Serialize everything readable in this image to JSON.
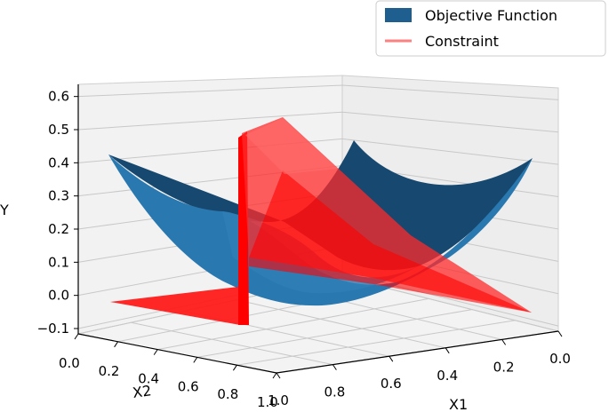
{
  "chart_data": {
    "type": "surface3d",
    "title": "",
    "xlabel": "X1",
    "ylabel": "X2",
    "zlabel": "Y",
    "xlim": [
      0.0,
      1.0
    ],
    "ylim": [
      0.0,
      1.0
    ],
    "zlim": [
      -0.1,
      0.6
    ],
    "x_ticks": [
      "0.0",
      "0.2",
      "0.4",
      "0.6",
      "0.8",
      "1.0"
    ],
    "y_ticks": [
      "0.0",
      "0.2",
      "0.4",
      "0.6",
      "0.8",
      "1.0"
    ],
    "z_ticks": [
      "−0.1",
      "0.0",
      "0.1",
      "0.2",
      "0.3",
      "0.4",
      "0.5",
      "0.6"
    ],
    "grid": true,
    "legend_position": "top-right",
    "series": [
      {
        "name": "Objective Function",
        "kind": "surface",
        "color": "#1f5f8f",
        "samples": {
          "x": [
            0.0,
            0.5,
            1.0
          ],
          "y": [
            0.0,
            0.5,
            1.0
          ],
          "z": [
            [
              0.5,
              0.25,
              0.5
            ],
            [
              0.25,
              0.0,
              0.25
            ],
            [
              0.5,
              0.25,
              0.5
            ]
          ]
        }
      },
      {
        "name": "Constraint",
        "kind": "surface",
        "color": "#ff2020",
        "samples": {
          "x": [
            0.0,
            0.5,
            1.0
          ],
          "y": [
            0.0,
            0.5,
            1.0
          ],
          "z": [
            [
              0.0,
              0.0,
              0.0
            ],
            [
              0.0,
              0.35,
              0.6
            ],
            [
              0.0,
              0.3,
              0.45
            ]
          ]
        }
      }
    ]
  }
}
